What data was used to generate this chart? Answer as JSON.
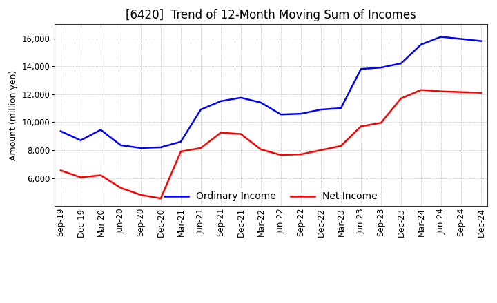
{
  "title": "[6420]  Trend of 12-Month Moving Sum of Incomes",
  "ylabel": "Amount (million yen)",
  "x_labels": [
    "Sep-19",
    "Dec-19",
    "Mar-20",
    "Jun-20",
    "Sep-20",
    "Dec-20",
    "Mar-21",
    "Jun-21",
    "Sep-21",
    "Dec-21",
    "Mar-22",
    "Jun-22",
    "Sep-22",
    "Dec-22",
    "Mar-23",
    "Jun-23",
    "Sep-23",
    "Dec-23",
    "Mar-24",
    "Jun-24",
    "Sep-24",
    "Dec-24"
  ],
  "ordinary_income": [
    9350,
    8700,
    9450,
    8350,
    8150,
    8200,
    8600,
    10900,
    11500,
    11750,
    11400,
    10550,
    10600,
    10900,
    11000,
    13800,
    13900,
    14200,
    15550,
    16100,
    15950,
    15800
  ],
  "net_income": [
    6550,
    6050,
    6200,
    5300,
    4800,
    4550,
    7900,
    8150,
    9250,
    9150,
    8050,
    7650,
    7700,
    8000,
    8300,
    9700,
    9950,
    11700,
    12300,
    12200,
    12150,
    12100
  ],
  "ordinary_color": "#0000ff",
  "net_color": "#ff0000",
  "ylim": [
    4000,
    17000
  ],
  "yticks": [
    6000,
    8000,
    10000,
    12000,
    14000,
    16000
  ],
  "background_color": "#ffffff",
  "grid_color": "#aaaaaa",
  "legend_labels": [
    "Ordinary Income",
    "Net Income"
  ],
  "title_fontsize": 12,
  "axis_fontsize": 9,
  "tick_fontsize": 8.5,
  "line_width": 1.8
}
